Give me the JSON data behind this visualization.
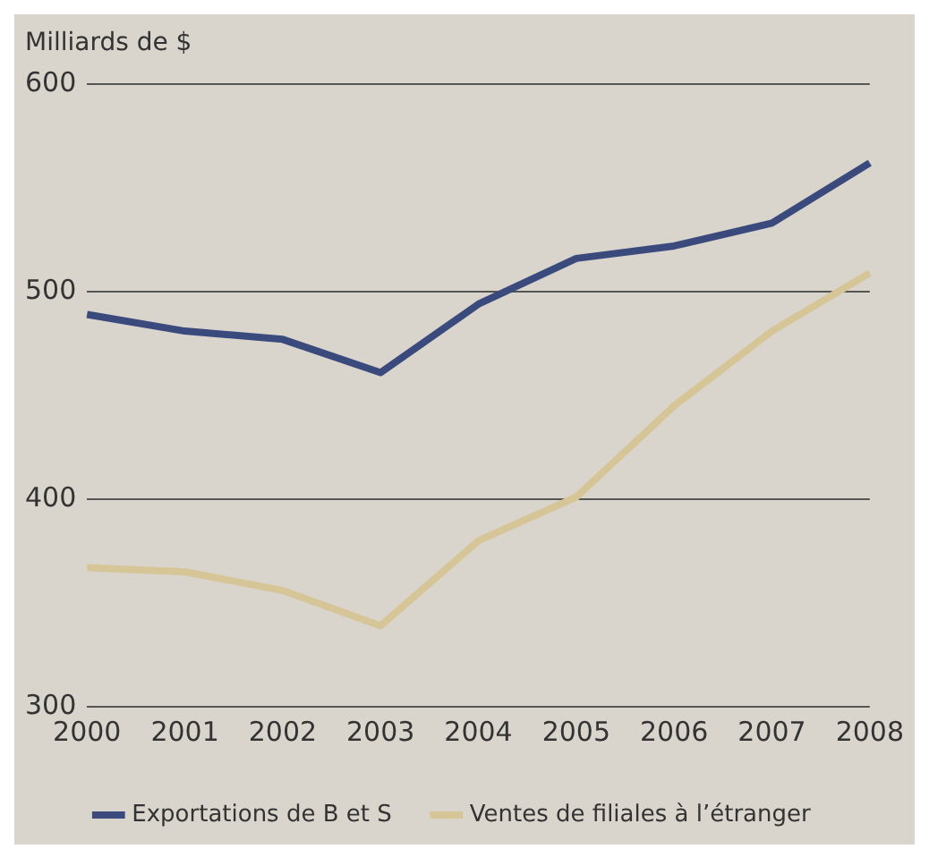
{
  "chart_data": {
    "type": "line",
    "ylabel": "Milliards de $",
    "categories": [
      "2000",
      "2001",
      "2002",
      "2003",
      "2004",
      "2005",
      "2006",
      "2007",
      "2008"
    ],
    "series": [
      {
        "name": "Exportations de B et S",
        "color": "#3b4a7c",
        "values": [
          489,
          481,
          477,
          461,
          494,
          516,
          522,
          533,
          562
        ]
      },
      {
        "name": "Ventes de filiales à l’étranger",
        "color": "#d6c596",
        "values": [
          367,
          365,
          356,
          339,
          380,
          401,
          445,
          481,
          509
        ]
      }
    ],
    "ylim": [
      300,
      600
    ],
    "yticks": [
      300,
      400,
      500,
      600
    ],
    "grid": "y",
    "legend": "bottom",
    "marker": "none",
    "line_style": "solid"
  }
}
